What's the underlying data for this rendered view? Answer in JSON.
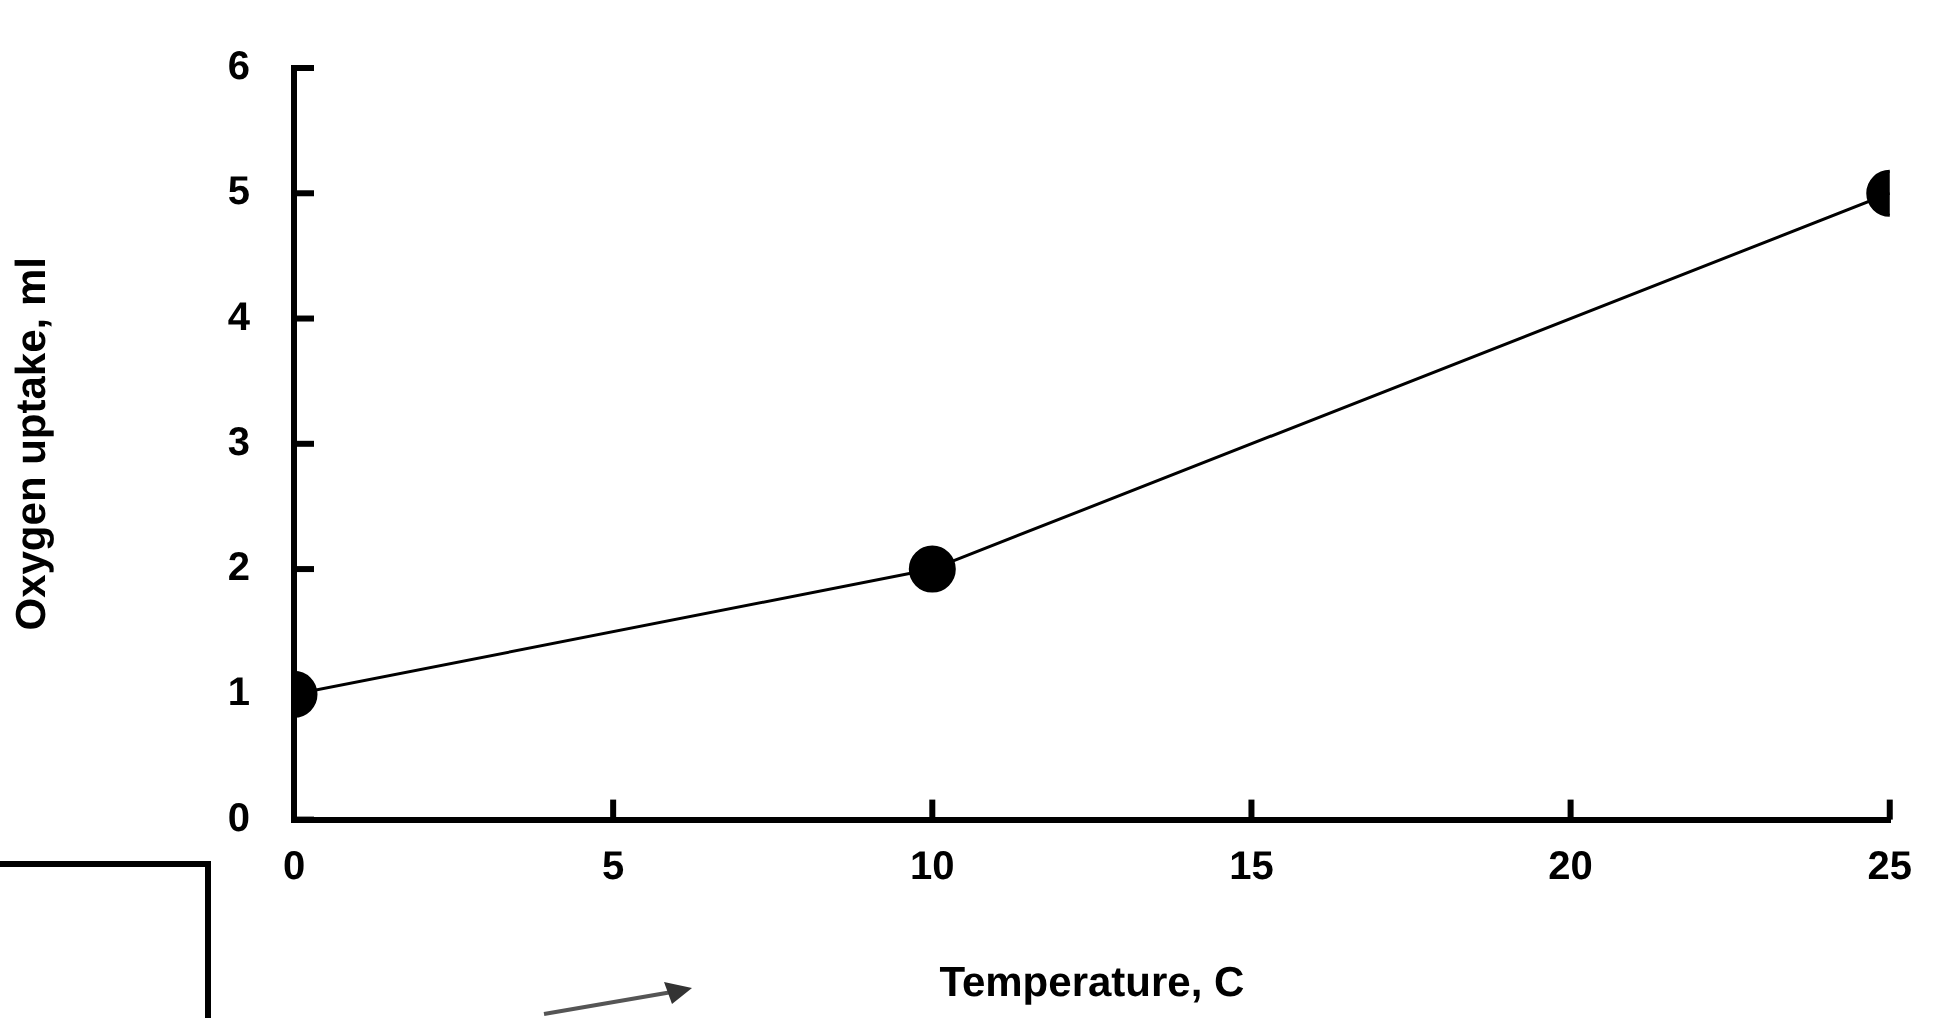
{
  "chart_data": {
    "type": "line",
    "xlabel": "Temperature, C",
    "ylabel": "Oxygen uptake, ml",
    "x": [
      0,
      10,
      25
    ],
    "series": [
      {
        "color": "#000000",
        "values": [
          1,
          2,
          5
        ]
      }
    ],
    "xlim": [
      0,
      25
    ],
    "xticks": [
      0,
      5,
      10,
      15,
      20,
      25
    ],
    "ylim": [
      0,
      6
    ],
    "yticks": [
      0,
      1,
      2,
      3,
      4,
      5,
      6
    ],
    "grid": false,
    "legend": false,
    "marker": "circle",
    "line_style": "solid"
  }
}
